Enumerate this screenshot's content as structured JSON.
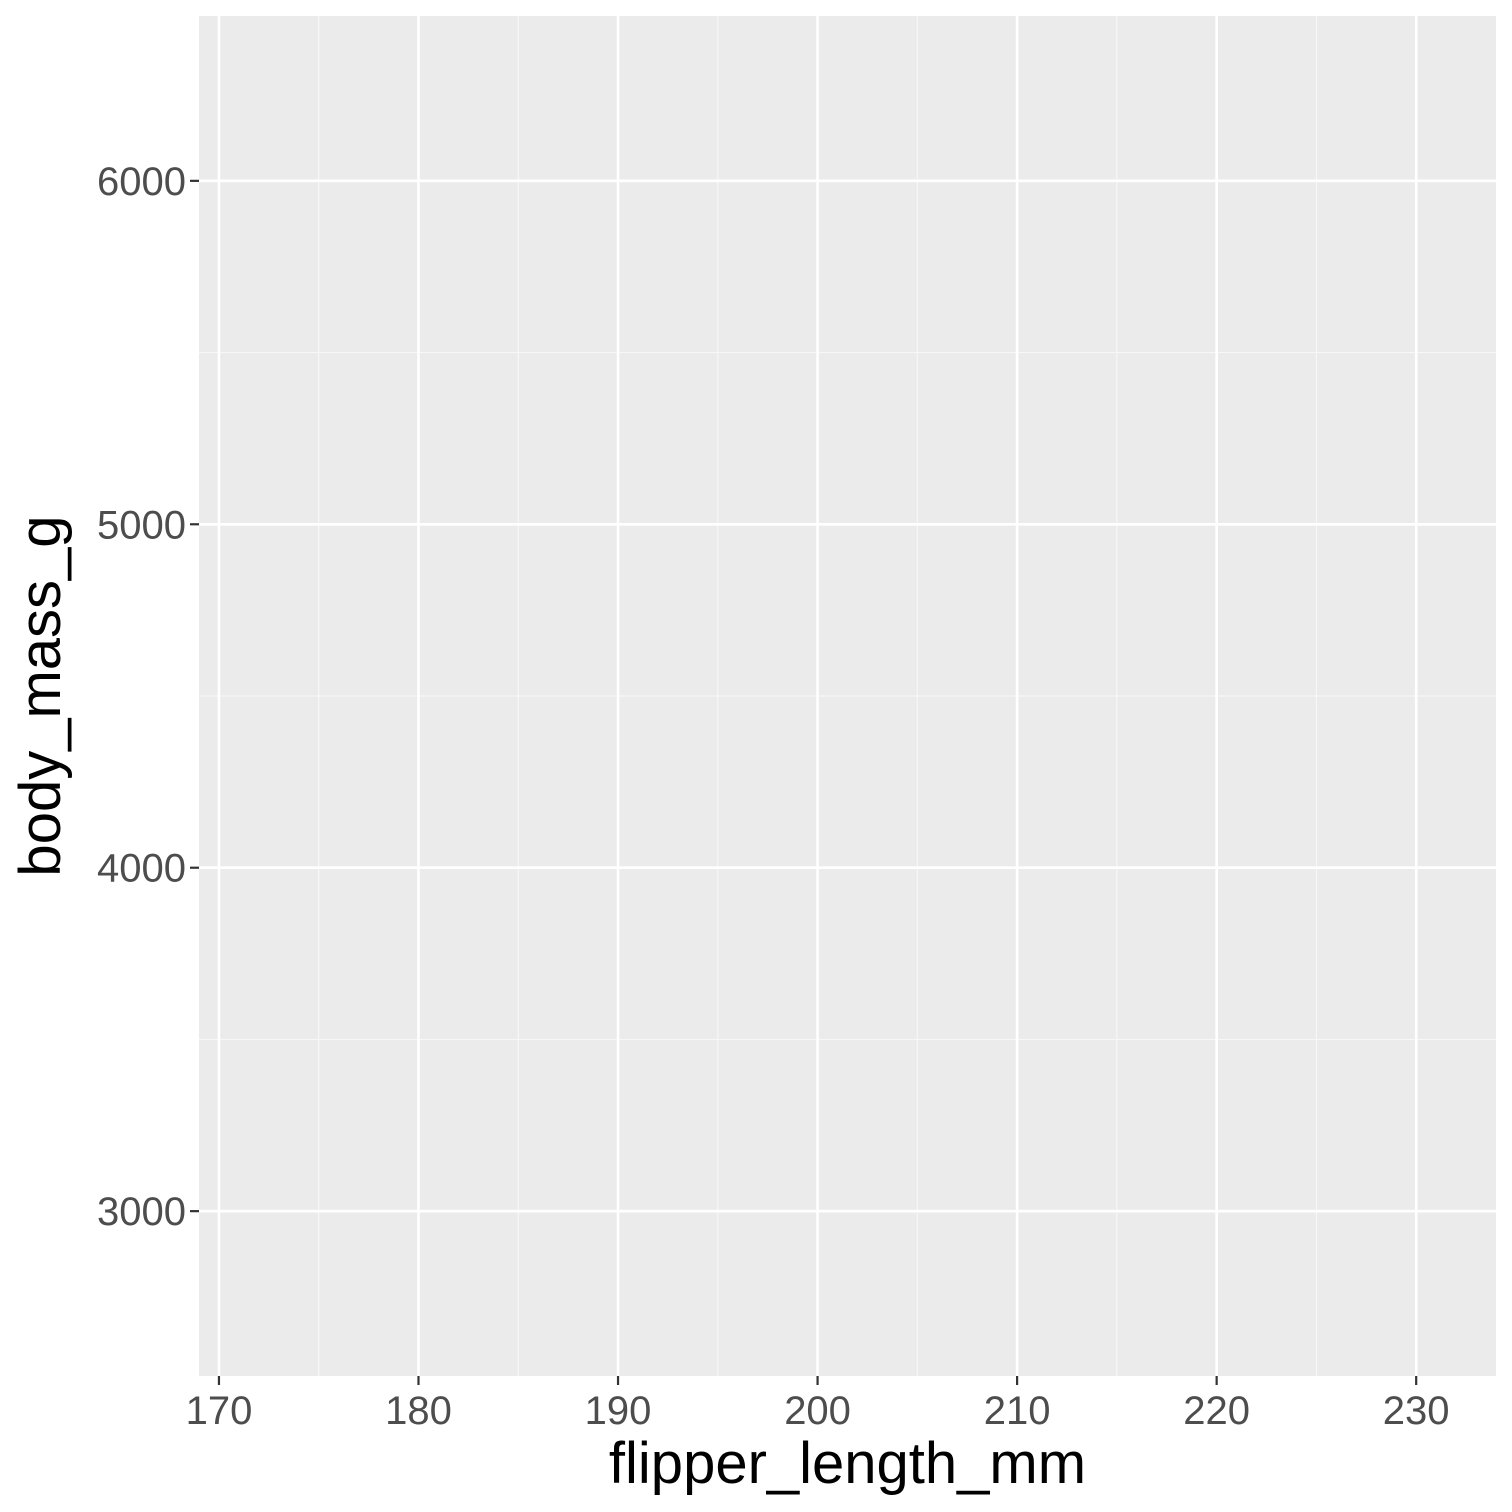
{
  "chart_data": {
    "type": "scatter",
    "title": "",
    "xlabel": "flipper_length_mm",
    "ylabel": "body_mass_g",
    "x_ticks": [
      170,
      180,
      190,
      200,
      210,
      220,
      230
    ],
    "y_ticks": [
      3000,
      4000,
      5000,
      6000
    ],
    "x_minor_ticks": [
      175,
      185,
      195,
      205,
      215,
      225
    ],
    "y_minor_ticks": [
      3500,
      4500,
      5500
    ],
    "xlim": [
      169,
      234
    ],
    "ylim": [
      2520,
      6480
    ],
    "grid": true,
    "legend": "none",
    "series": [],
    "colors": {
      "panel_background": "#ebebeb",
      "grid_major": "#ffffff",
      "grid_minor": "#f7f7f7",
      "tick_label": "#4d4d4d",
      "tick_mark": "#333333",
      "axis_title": "#000000"
    }
  }
}
